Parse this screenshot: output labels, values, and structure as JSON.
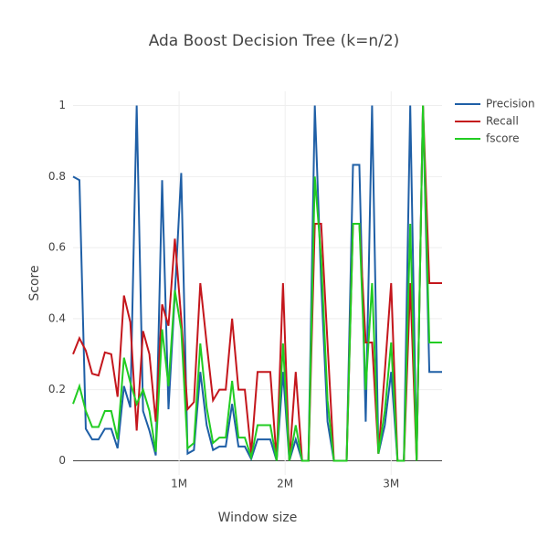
{
  "chart_data": {
    "type": "line",
    "title": "Ada Boost Decision Tree (k=n/2)",
    "x_label": "Window size",
    "y_label": "Score",
    "x": [
      0,
      60000,
      120000,
      180000,
      240000,
      300000,
      360000,
      420000,
      480000,
      540000,
      600000,
      660000,
      720000,
      780000,
      840000,
      900000,
      960000,
      1020000,
      1080000,
      1140000,
      1200000,
      1260000,
      1320000,
      1380000,
      1440000,
      1500000,
      1560000,
      1620000,
      1680000,
      1740000,
      1800000,
      1860000,
      1920000,
      1980000,
      2040000,
      2100000,
      2160000,
      2220000,
      2280000,
      2340000,
      2400000,
      2460000,
      2520000,
      2580000,
      2640000,
      2700000,
      2760000,
      2820000,
      2880000,
      2940000,
      3000000,
      3060000,
      3120000,
      3180000,
      3240000,
      3300000,
      3360000,
      3420000,
      3480000
    ],
    "series": [
      {
        "name": "Precision",
        "color": "#1f5fa6",
        "values": [
          0.8,
          0.79,
          0.09,
          0.06,
          0.06,
          0.09,
          0.09,
          0.035,
          0.21,
          0.15,
          1.0,
          0.14,
          0.085,
          0.015,
          0.79,
          0.145,
          0.47,
          0.81,
          0.02,
          0.03,
          0.25,
          0.1,
          0.03,
          0.04,
          0.04,
          0.16,
          0.04,
          0.04,
          0.005,
          0.06,
          0.06,
          0.06,
          0,
          0.25,
          0,
          0.06,
          0,
          0,
          1.0,
          0.5,
          0.11,
          0,
          0,
          0,
          0.833,
          0.833,
          0.11,
          1.0,
          0.02,
          0.1,
          0.25,
          0,
          0,
          1.0,
          0,
          1.0,
          0.25,
          0.25,
          0.25
        ]
      },
      {
        "name": "Recall",
        "color": "#c4161c",
        "values": [
          0.3,
          0.345,
          0.31,
          0.245,
          0.24,
          0.305,
          0.3,
          0.18,
          0.465,
          0.39,
          0.085,
          0.365,
          0.3,
          0.11,
          0.44,
          0.38,
          0.625,
          0.4,
          0.145,
          0.165,
          0.5,
          0.33,
          0.17,
          0.2,
          0.2,
          0.4,
          0.2,
          0.2,
          0.02,
          0.25,
          0.25,
          0.25,
          0,
          0.5,
          0,
          0.25,
          0,
          0,
          0.667,
          0.667,
          0.33,
          0,
          0,
          0,
          0.667,
          0.667,
          0.333,
          0.333,
          0.02,
          0.25,
          0.5,
          0,
          0,
          0.5,
          0,
          1.0,
          0.5,
          0.5,
          0.5
        ]
      },
      {
        "name": "fscore",
        "color": "#22cc22",
        "values": [
          0.16,
          0.21,
          0.14,
          0.095,
          0.095,
          0.14,
          0.14,
          0.06,
          0.29,
          0.22,
          0.16,
          0.2,
          0.14,
          0.025,
          0.37,
          0.21,
          0.48,
          0.37,
          0.035,
          0.05,
          0.33,
          0.15,
          0.05,
          0.065,
          0.065,
          0.225,
          0.065,
          0.065,
          0.01,
          0.1,
          0.1,
          0.1,
          0,
          0.33,
          0,
          0.1,
          0,
          0,
          0.8,
          0.57,
          0.17,
          0,
          0,
          0,
          0.667,
          0.667,
          0.2,
          0.5,
          0.02,
          0.14,
          0.333,
          0,
          0,
          0.667,
          0,
          1.0,
          0.333,
          0.333,
          0.333
        ]
      }
    ],
    "xlim": [
      0,
      3480000
    ],
    "xticks": [
      {
        "value": 1000000,
        "label": "1M"
      },
      {
        "value": 2000000,
        "label": "2M"
      },
      {
        "value": 3000000,
        "label": "3M"
      }
    ],
    "ylim": [
      -0.04,
      1.04
    ],
    "yticks": [
      0,
      0.2,
      0.4,
      0.6,
      0.8,
      1
    ],
    "grid": true,
    "legend": "right"
  }
}
